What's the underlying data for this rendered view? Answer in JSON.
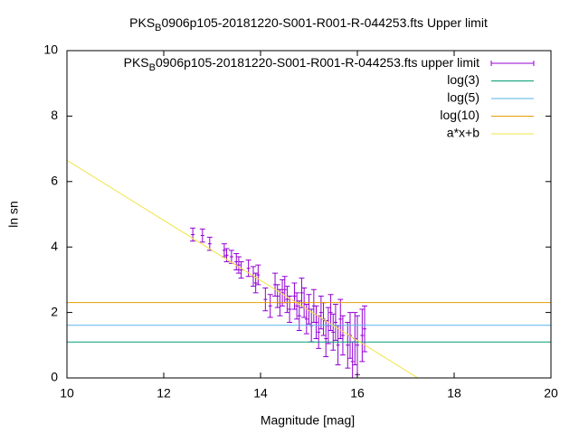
{
  "chart_data": {
    "type": "scatter",
    "title": [
      "PKS",
      "B",
      "0906p105-20181220-S001-R001-R-044253.fts Upper limit"
    ],
    "x_label": "Magnitude [mag]",
    "y_label": "ln sn",
    "xlim": [
      10,
      20
    ],
    "ylim": [
      0,
      10
    ],
    "xticks": [
      10,
      12,
      14,
      16,
      18,
      20
    ],
    "yticks": [
      0,
      2,
      4,
      6,
      8,
      10
    ],
    "legend": "top-right",
    "series": [
      {
        "name": [
          "PKS",
          "B",
          "0906p105-20181220-S001-R001-R-044253.fts upper limit"
        ],
        "type": "errorbar",
        "color": "#9400d3",
        "x": [
          12.6,
          12.8,
          12.95,
          13.25,
          13.3,
          13.4,
          13.5,
          13.55,
          13.6,
          13.75,
          13.85,
          13.9,
          13.95,
          14.1,
          14.2,
          14.3,
          14.35,
          14.4,
          14.45,
          14.5,
          14.55,
          14.6,
          14.7,
          14.75,
          14.8,
          14.85,
          14.9,
          14.95,
          15.0,
          15.05,
          15.1,
          15.15,
          15.2,
          15.25,
          15.3,
          15.35,
          15.4,
          15.45,
          15.5,
          15.55,
          15.6,
          15.65,
          15.7,
          15.8,
          15.85,
          15.9,
          15.95,
          16.0,
          16.1,
          16.15
        ],
        "values": [
          4.38,
          4.35,
          4.1,
          3.9,
          3.75,
          3.7,
          3.55,
          3.45,
          3.3,
          3.35,
          3.1,
          2.9,
          3.15,
          2.4,
          2.2,
          2.85,
          2.5,
          2.3,
          2.6,
          2.7,
          2.4,
          2.1,
          2.5,
          2.2,
          1.9,
          2.6,
          2.3,
          1.8,
          2.1,
          1.6,
          2.2,
          1.7,
          1.4,
          2.0,
          1.8,
          1.2,
          1.6,
          2.0,
          1.4,
          1.7,
          1.0,
          1.8,
          1.3,
          1.0,
          1.3,
          0.5,
          1.2,
          1.0,
          1.3,
          1.5
        ],
        "errors": [
          0.2,
          0.2,
          0.2,
          0.2,
          0.2,
          0.2,
          0.25,
          0.25,
          0.25,
          0.25,
          0.3,
          0.3,
          0.3,
          0.35,
          0.35,
          0.35,
          0.35,
          0.4,
          0.4,
          0.4,
          0.4,
          0.4,
          0.4,
          0.4,
          0.45,
          0.45,
          0.45,
          0.45,
          0.45,
          0.5,
          0.5,
          0.5,
          0.5,
          0.5,
          0.5,
          0.55,
          0.55,
          0.55,
          0.55,
          0.55,
          0.6,
          0.6,
          0.6,
          0.7,
          0.7,
          0.6,
          0.8,
          0.9,
          0.8,
          0.7
        ]
      },
      {
        "name": "log(3)",
        "type": "hline",
        "color": "#009e73",
        "values": [
          1.0986
        ]
      },
      {
        "name": "log(5)",
        "type": "hline",
        "color": "#56b4e9",
        "values": [
          1.6094
        ]
      },
      {
        "name": "log(10)",
        "type": "hline",
        "color": "#e69f00",
        "values": [
          2.3026
        ]
      },
      {
        "name": "a*x+b",
        "type": "line",
        "color": "#f0e442",
        "x": [
          10,
          17.25
        ],
        "values": [
          6.65,
          0
        ]
      }
    ]
  }
}
